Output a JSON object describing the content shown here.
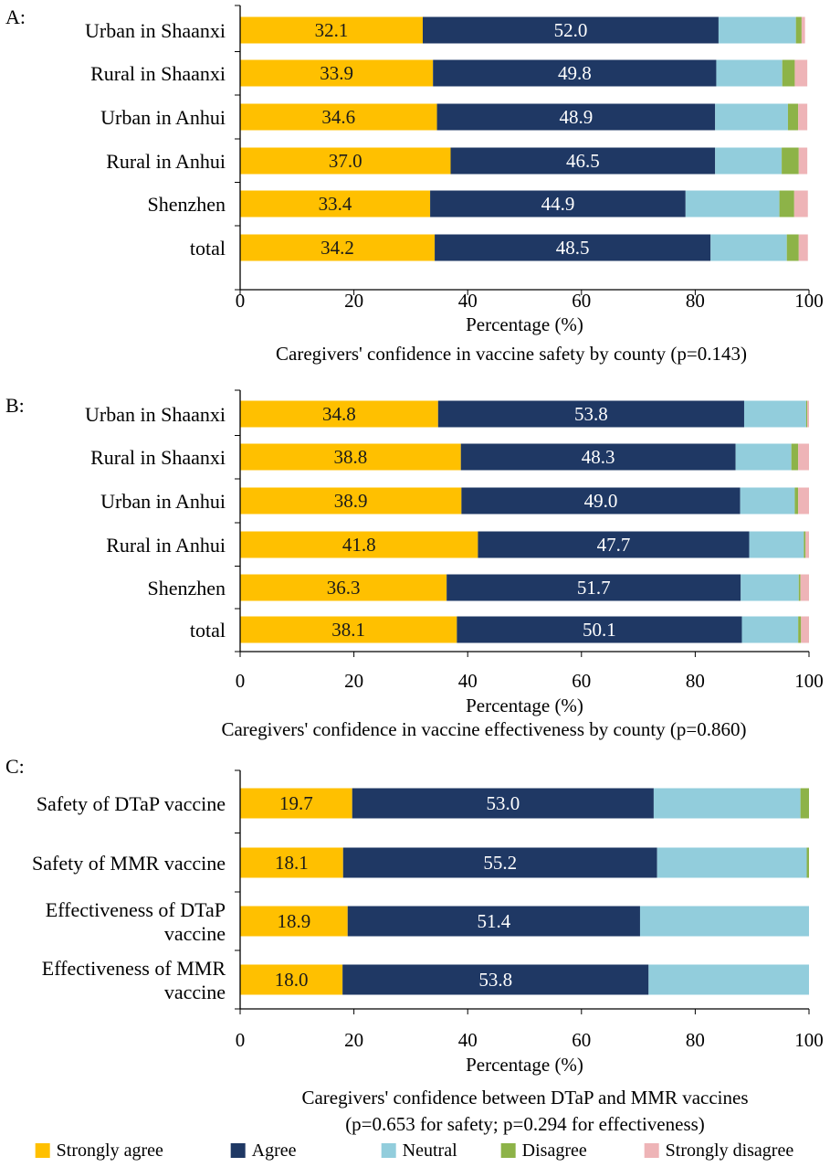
{
  "colors": {
    "strongly_agree": "#FFC000",
    "agree": "#1F3864",
    "neutral": "#92CDDC",
    "disagree": "#8DB348",
    "strongly_disagree": "#EEB4B7",
    "axis": "#000000"
  },
  "legend": {
    "items": [
      {
        "key": "strongly_agree",
        "label": "Strongly agree"
      },
      {
        "key": "agree",
        "label": "Agree"
      },
      {
        "key": "neutral",
        "label": "Neutral"
      },
      {
        "key": "disagree",
        "label": "Disagree"
      },
      {
        "key": "strongly_disagree",
        "label": "Strongly disagree"
      }
    ]
  },
  "chart_data": [
    {
      "type": "bar",
      "orientation": "horizontal",
      "stacked": true,
      "panel": "A:",
      "title": "",
      "xlabel": "Percentage (%)",
      "xlim": [
        0,
        100
      ],
      "xticks": [
        0,
        20,
        40,
        60,
        80,
        100
      ],
      "caption": [
        "Caregivers' confidence in vaccine safety by county (p=0.143)"
      ],
      "categories": [
        [
          "Urban in Shaanxi"
        ],
        [
          "Rural in Shaanxi"
        ],
        [
          "Urban in Anhui"
        ],
        [
          "Rural in Anhui"
        ],
        [
          "Shenzhen"
        ],
        [
          "total"
        ]
      ],
      "series": [
        {
          "name": "Strongly agree",
          "key": "strongly_agree",
          "values": [
            32.1,
            33.9,
            34.6,
            37.0,
            33.4,
            34.2
          ],
          "labeled": true
        },
        {
          "name": "Agree",
          "key": "agree",
          "values": [
            52.0,
            49.8,
            48.9,
            46.5,
            44.9,
            48.5
          ],
          "labeled": true
        },
        {
          "name": "Neutral",
          "key": "neutral",
          "values": [
            13.6,
            11.6,
            12.8,
            11.7,
            16.5,
            13.4
          ],
          "labeled": false
        },
        {
          "name": "Disagree",
          "key": "disagree",
          "values": [
            1.0,
            2.2,
            1.8,
            3.0,
            2.6,
            2.1
          ],
          "labeled": false
        },
        {
          "name": "Strongly disagree",
          "key": "strongly_disagree",
          "values": [
            0.6,
            2.2,
            1.6,
            1.5,
            2.4,
            1.6
          ],
          "labeled": false
        }
      ],
      "legend": false
    },
    {
      "type": "bar",
      "orientation": "horizontal",
      "stacked": true,
      "panel": "B:",
      "title": "",
      "xlabel": "Percentage (%)",
      "xlim": [
        0,
        100
      ],
      "xticks": [
        0,
        20,
        40,
        60,
        80,
        100
      ],
      "caption": [
        "Caregivers' confidence in vaccine effectiveness by county (p=0.860)"
      ],
      "categories": [
        [
          "Urban in Shaanxi"
        ],
        [
          "Rural in Shaanxi"
        ],
        [
          "Urban in Anhui"
        ],
        [
          "Rural in Anhui"
        ],
        [
          "Shenzhen"
        ],
        [
          "total"
        ]
      ],
      "series": [
        {
          "name": "Strongly agree",
          "key": "strongly_agree",
          "values": [
            34.8,
            38.8,
            38.9,
            41.8,
            36.3,
            38.1
          ],
          "labeled": true
        },
        {
          "name": "Agree",
          "key": "agree",
          "values": [
            53.8,
            48.3,
            49.0,
            47.7,
            51.7,
            50.1
          ],
          "labeled": true
        },
        {
          "name": "Neutral",
          "key": "neutral",
          "values": [
            10.9,
            9.8,
            9.6,
            9.6,
            10.2,
            9.9
          ],
          "labeled": false
        },
        {
          "name": "Disagree",
          "key": "disagree",
          "values": [
            0.2,
            1.2,
            0.6,
            0.3,
            0.3,
            0.5
          ],
          "labeled": false
        },
        {
          "name": "Strongly disagree",
          "key": "strongly_disagree",
          "values": [
            0.3,
            1.9,
            1.9,
            0.6,
            1.5,
            1.4
          ],
          "labeled": false
        }
      ],
      "legend": false
    },
    {
      "type": "bar",
      "orientation": "horizontal",
      "stacked": true,
      "panel": "C:",
      "title": "",
      "xlabel": "Percentage (%)",
      "xlim": [
        0,
        100
      ],
      "xticks": [
        0,
        20,
        40,
        60,
        80,
        100
      ],
      "caption": [
        "Caregivers' confidence between DTaP and MMR vaccines",
        "(p=0.653 for safety; p=0.294 for effectiveness)"
      ],
      "categories": [
        [
          "Safety of DTaP vaccine"
        ],
        [
          "Safety of MMR vaccine"
        ],
        [
          "Effectiveness of DTaP",
          "vaccine"
        ],
        [
          "Effectiveness of MMR",
          "vaccine"
        ]
      ],
      "series": [
        {
          "name": "Strongly agree",
          "key": "strongly_agree",
          "values": [
            19.7,
            18.1,
            18.9,
            18.0
          ],
          "labeled": true
        },
        {
          "name": "Agree",
          "key": "agree",
          "values": [
            53.0,
            55.2,
            51.4,
            53.8
          ],
          "labeled": true
        },
        {
          "name": "Neutral",
          "key": "neutral",
          "values": [
            25.8,
            26.3,
            29.7,
            28.2
          ],
          "labeled": false
        },
        {
          "name": "Disagree",
          "key": "disagree",
          "values": [
            1.5,
            0.4,
            0.0,
            0.0
          ],
          "labeled": false
        },
        {
          "name": "Strongly disagree",
          "key": "strongly_disagree",
          "values": [
            0.0,
            0.0,
            0.0,
            0.0
          ],
          "labeled": false
        }
      ],
      "legend": "bottom"
    }
  ]
}
